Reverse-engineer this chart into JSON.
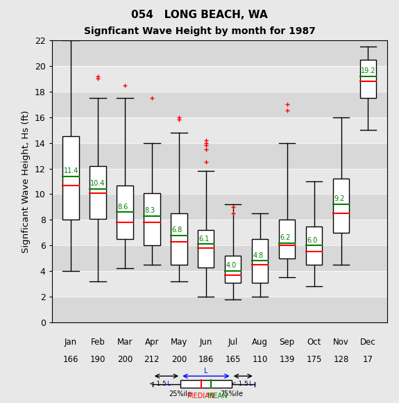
{
  "title1": "054   LONG BEACH, WA",
  "title2": "Signficant Wave Height by month for 1987",
  "ylabel": "Signficant Wave Height, Hs (ft)",
  "months": [
    "Jan",
    "Feb",
    "Mar",
    "Apr",
    "May",
    "Jun",
    "Jul",
    "Aug",
    "Sep",
    "Oct",
    "Nov",
    "Dec"
  ],
  "counts": [
    166,
    190,
    200,
    212,
    200,
    186,
    165,
    110,
    139,
    175,
    128,
    17
  ],
  "boxes": [
    {
      "q1": 8.0,
      "median": 10.7,
      "q3": 14.5,
      "whislo": 4.0,
      "whishi": 22.0,
      "mean": 11.4,
      "fliers": []
    },
    {
      "q1": 8.1,
      "median": 10.1,
      "q3": 12.2,
      "whislo": 3.2,
      "whishi": 17.5,
      "mean": 10.4,
      "fliers": [
        19.0,
        19.2
      ]
    },
    {
      "q1": 6.5,
      "median": 7.8,
      "q3": 10.7,
      "whislo": 4.2,
      "whishi": 17.5,
      "mean": 8.6,
      "fliers": [
        18.5
      ]
    },
    {
      "q1": 6.0,
      "median": 7.8,
      "q3": 10.1,
      "whislo": 4.5,
      "whishi": 14.0,
      "mean": 8.3,
      "fliers": [
        17.5
      ]
    },
    {
      "q1": 4.5,
      "median": 6.3,
      "q3": 8.5,
      "whislo": 3.2,
      "whishi": 14.8,
      "mean": 6.8,
      "fliers": [
        15.8,
        16.0
      ]
    },
    {
      "q1": 4.3,
      "median": 5.8,
      "q3": 7.2,
      "whislo": 2.0,
      "whishi": 11.8,
      "mean": 6.1,
      "fliers": [
        12.5,
        13.5,
        13.8,
        14.0,
        14.2
      ]
    },
    {
      "q1": 3.1,
      "median": 3.7,
      "q3": 5.2,
      "whislo": 1.8,
      "whishi": 9.2,
      "mean": 4.0,
      "fliers": [
        8.5,
        9.0
      ]
    },
    {
      "q1": 3.1,
      "median": 4.5,
      "q3": 6.5,
      "whislo": 2.0,
      "whishi": 8.5,
      "mean": 4.8,
      "fliers": []
    },
    {
      "q1": 5.0,
      "median": 6.0,
      "q3": 8.0,
      "whislo": 3.5,
      "whishi": 14.0,
      "mean": 6.2,
      "fliers": [
        16.5,
        17.0
      ]
    },
    {
      "q1": 4.5,
      "median": 5.5,
      "q3": 7.5,
      "whislo": 2.8,
      "whishi": 11.0,
      "mean": 6.0,
      "fliers": []
    },
    {
      "q1": 7.0,
      "median": 8.5,
      "q3": 11.2,
      "whislo": 4.5,
      "whishi": 16.0,
      "mean": 9.2,
      "fliers": []
    },
    {
      "q1": 17.5,
      "median": 18.8,
      "q3": 20.5,
      "whislo": 15.0,
      "whishi": 21.5,
      "mean": 19.2,
      "fliers": []
    }
  ],
  "ylim": [
    0,
    22
  ],
  "yticks": [
    0,
    2,
    4,
    6,
    8,
    10,
    12,
    14,
    16,
    18,
    20,
    22
  ],
  "bg_color": "#e8e8e8",
  "stripe_color": "#d8d8d8",
  "box_color": "white",
  "median_color": "red",
  "mean_color": "green",
  "flier_color": "red",
  "whisker_color": "black"
}
